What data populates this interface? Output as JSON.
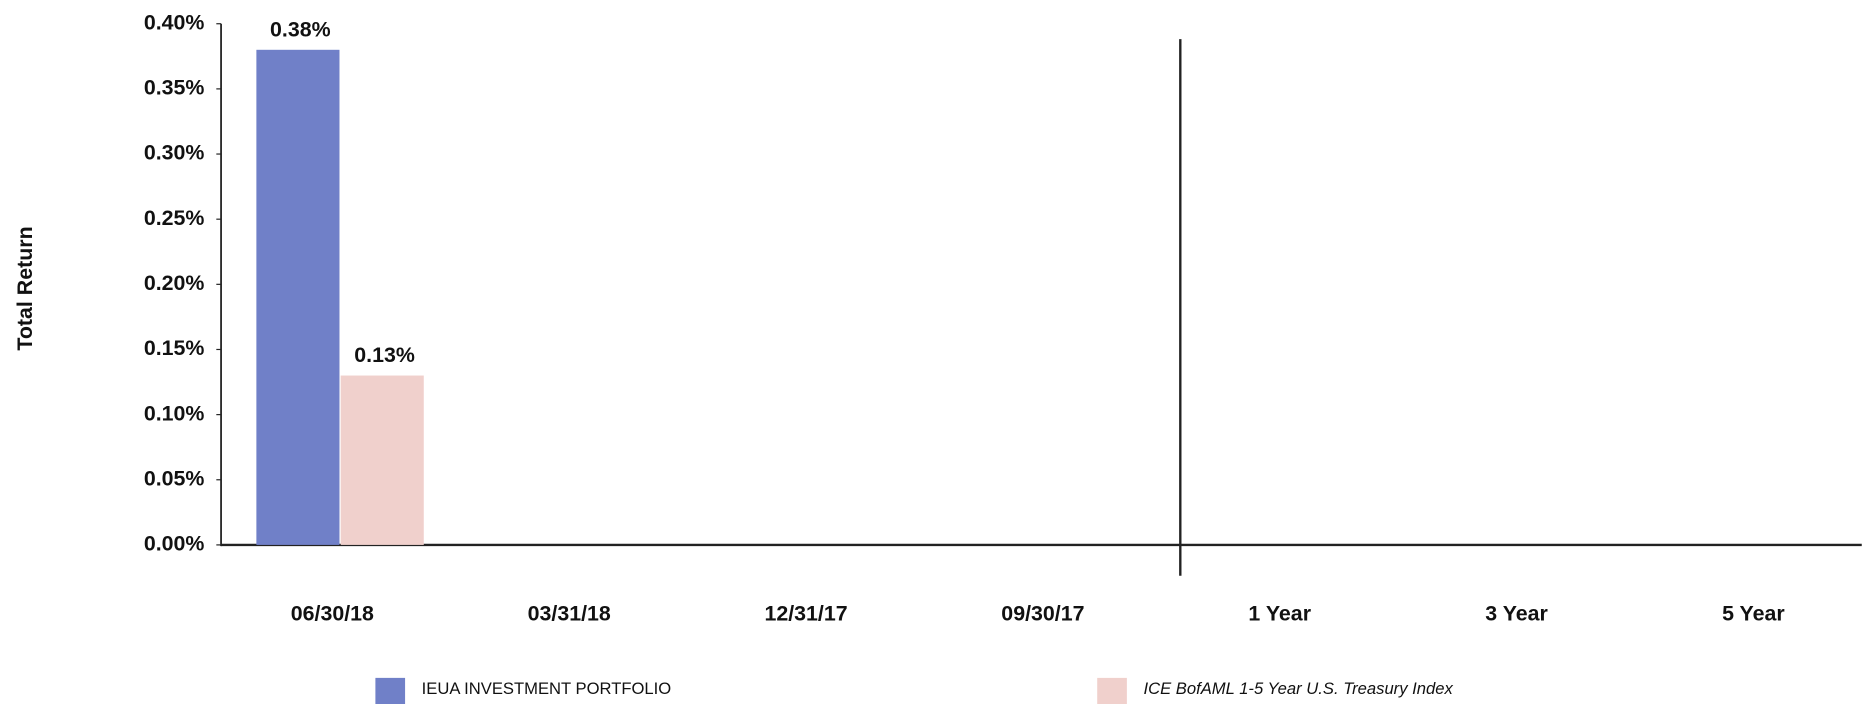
{
  "chart_data": {
    "type": "bar",
    "y_label": "Total Return",
    "categories": [
      "06/30/18",
      "03/31/18",
      "12/31/17",
      "09/30/17",
      "1 Year",
      "3 Year",
      "5 Year"
    ],
    "series": [
      {
        "name": "IEUA INVESTMENT PORTFOLIO",
        "color": "#7080c8",
        "values": [
          0.38,
          null,
          null,
          null,
          null,
          null,
          null
        ],
        "value_labels": [
          "0.38%",
          null,
          null,
          null,
          null,
          null,
          null
        ]
      },
      {
        "name": "ICE BofAML 1-5 Year U.S. Treasury Index",
        "color": "#f0d0cc",
        "values": [
          0.13,
          null,
          null,
          null,
          null,
          null,
          null
        ],
        "value_labels": [
          "0.13%",
          null,
          null,
          null,
          null,
          null,
          null
        ]
      }
    ],
    "ylim": [
      0,
      0.4
    ],
    "yticks": [
      {
        "value": 0,
        "label": "0.00%"
      },
      {
        "value": 0.05,
        "label": "0.05%"
      },
      {
        "value": 0.1,
        "label": "0.10%"
      },
      {
        "value": 0.15,
        "label": "0.15%"
      },
      {
        "value": 0.2,
        "label": "0.20%"
      },
      {
        "value": 0.25,
        "label": "0.25%"
      },
      {
        "value": 0.3,
        "label": "0.30%"
      },
      {
        "value": 0.35,
        "label": "0.35%"
      },
      {
        "value": 0.4,
        "label": "0.40%"
      }
    ],
    "grid": false
  }
}
